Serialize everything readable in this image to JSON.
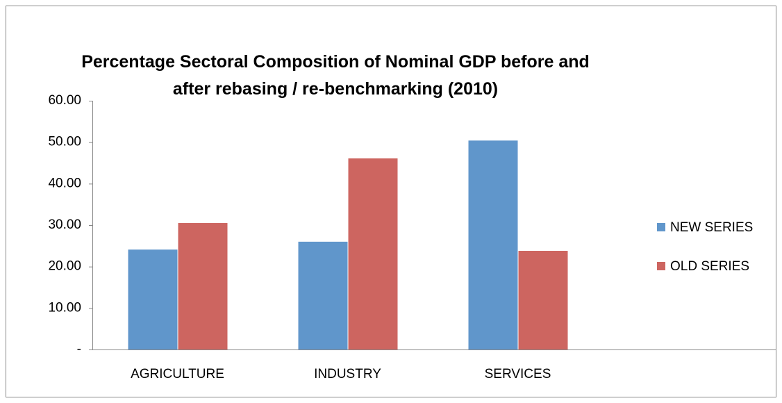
{
  "chart_data": {
    "type": "bar",
    "title": "Percentage Sectoral Composition of Nominal GDP before and after rebasing / re-benchmarking (2010)",
    "categories": [
      "AGRICULTURE",
      "INDUSTRY",
      "SERVICES",
      null
    ],
    "series": [
      {
        "name": "NEW SERIES",
        "color": "#6096cb",
        "values": [
          24.1,
          26.0,
          50.4,
          null
        ]
      },
      {
        "name": "OLD SERIES",
        "color": "#cd6560",
        "values": [
          30.5,
          46.1,
          23.8,
          null
        ]
      }
    ],
    "ylim": [
      0,
      60
    ],
    "yticks": [
      {
        "value": 0,
        "label": "-"
      },
      {
        "value": 10,
        "label": "10.00"
      },
      {
        "value": 20,
        "label": "20.00"
      },
      {
        "value": 30,
        "label": "30.00"
      },
      {
        "value": 40,
        "label": "40.00"
      },
      {
        "value": 50,
        "label": "50.00"
      },
      {
        "value": 60,
        "label": "60.00"
      }
    ],
    "grid": false,
    "legend": "right"
  }
}
